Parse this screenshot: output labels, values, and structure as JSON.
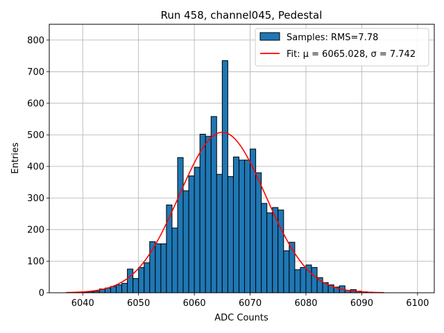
{
  "chart_data": {
    "type": "histogram",
    "title": "Run 458, channel045, Pedestal",
    "xlabel": "ADC Counts",
    "ylabel": "Entries",
    "xlim": [
      6034,
      6103
    ],
    "ylim": [
      0,
      850
    ],
    "xticks": [
      6040,
      6050,
      6060,
      6070,
      6080,
      6090,
      6100
    ],
    "yticks": [
      0,
      100,
      200,
      300,
      400,
      500,
      600,
      700,
      800
    ],
    "grid": true,
    "legend_position": "top-right",
    "colors": {
      "bar": "#1f77b4",
      "fit": "#ff0000",
      "grid": "#b0b0b0"
    },
    "series": [
      {
        "name": "Samples: RMS=7.78",
        "type": "bar",
        "bin_width": 1,
        "bins": [
          6037,
          6038,
          6039,
          6040,
          6041,
          6042,
          6043,
          6044,
          6045,
          6046,
          6047,
          6048,
          6049,
          6050,
          6051,
          6052,
          6053,
          6054,
          6055,
          6056,
          6057,
          6058,
          6059,
          6060,
          6061,
          6062,
          6063,
          6064,
          6065,
          6066,
          6067,
          6068,
          6069,
          6070,
          6071,
          6072,
          6073,
          6074,
          6075,
          6076,
          6077,
          6078,
          6079,
          6080,
          6081,
          6082,
          6083,
          6084,
          6085,
          6086,
          6087,
          6088,
          6089,
          6090,
          6091,
          6092,
          6093
        ],
        "values": [
          0,
          0,
          2,
          1,
          3,
          5,
          12,
          15,
          20,
          25,
          30,
          75,
          45,
          80,
          95,
          162,
          155,
          155,
          278,
          205,
          428,
          323,
          370,
          397,
          502,
          495,
          558,
          375,
          735,
          368,
          430,
          420,
          420,
          455,
          380,
          283,
          253,
          270,
          262,
          133,
          160,
          73,
          80,
          88,
          80,
          48,
          32,
          25,
          18,
          22,
          8,
          10,
          5,
          3,
          2,
          1,
          0
        ]
      },
      {
        "name": "Fit: μ = 6065.028, σ = 7.742",
        "type": "line",
        "mu": 6065.028,
        "sigma": 7.742,
        "amplitude": 508,
        "x_range": [
          6037,
          6094
        ]
      }
    ]
  }
}
